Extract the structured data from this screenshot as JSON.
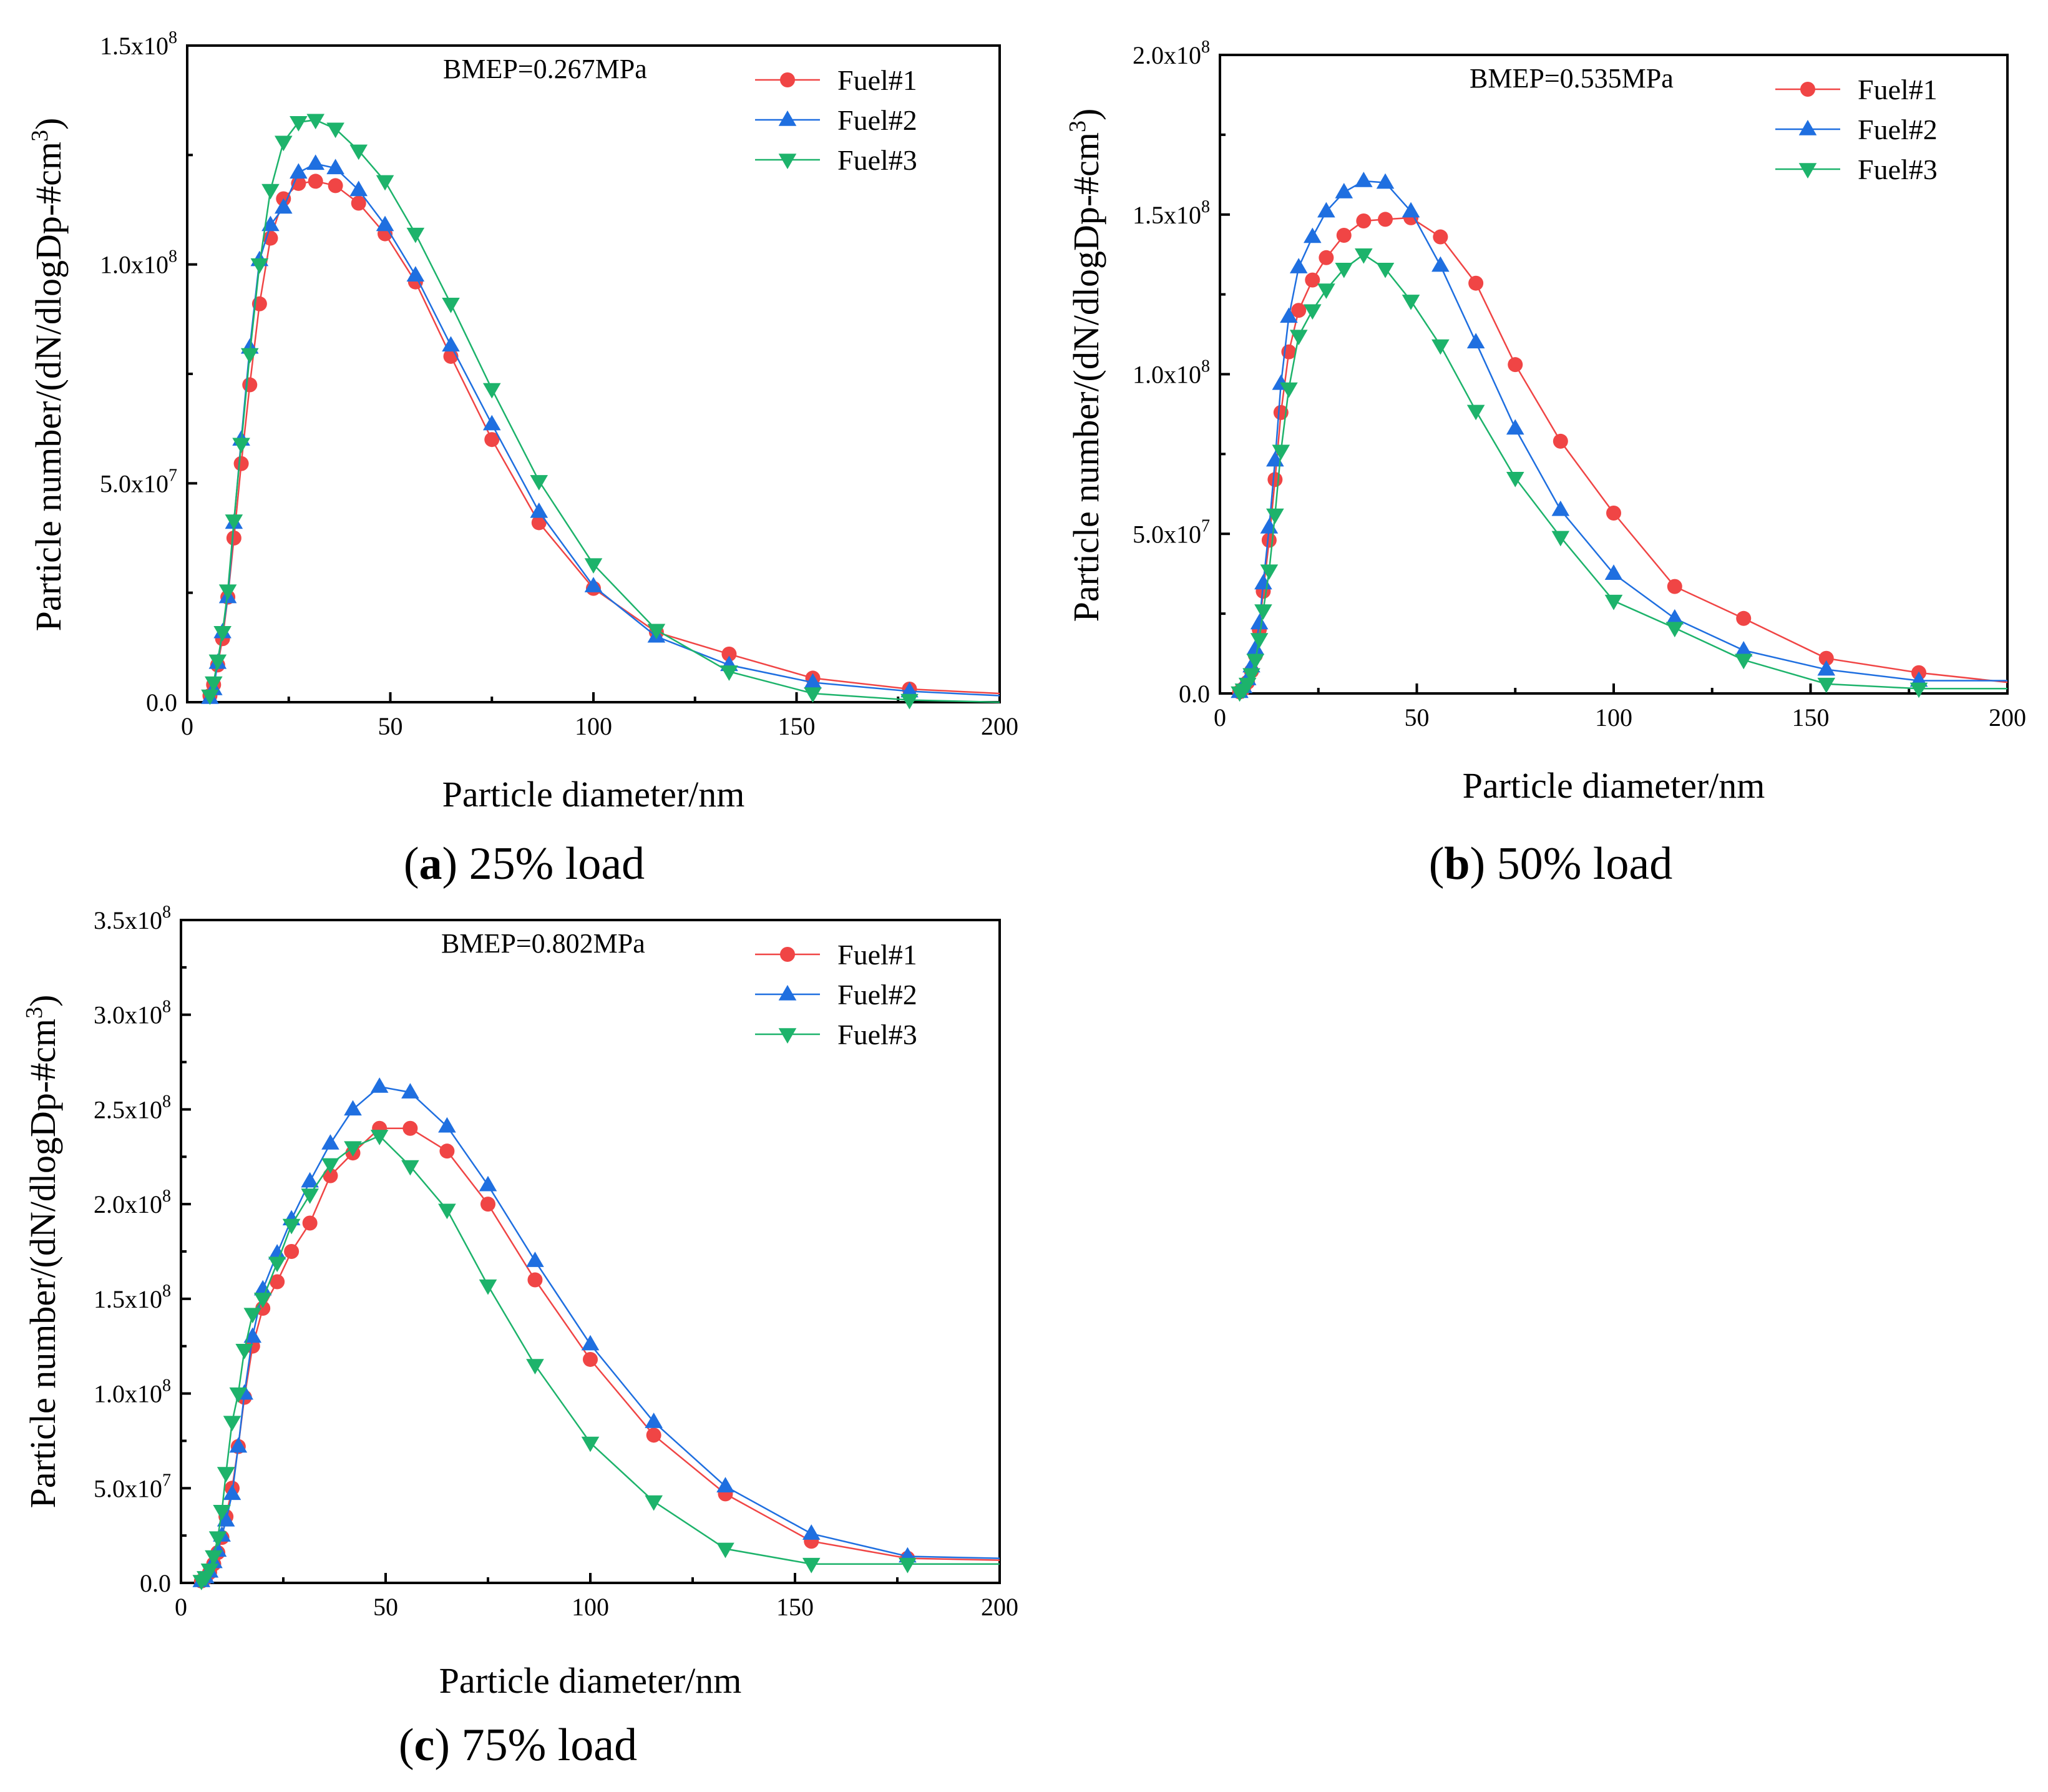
{
  "colors": {
    "Fuel#1": "#f04545",
    "Fuel#2": "#1f6fe0",
    "Fuel#3": "#1db36b"
  },
  "chart_data": [
    {
      "type": "line",
      "panel_id": "a",
      "caption_letter": "a",
      "caption_text": "25% load",
      "annotation": "BMEP=0.267MPa",
      "xlabel": "Particle diameter/nm",
      "ylabel": "Particle number/(dN/dlogDp-#cm3)",
      "xlim": [
        0,
        200
      ],
      "ylim": [
        0,
        150000000
      ],
      "x_ticks": [
        "0",
        "50",
        "100",
        "150",
        "200"
      ],
      "y_ticks": [
        {
          "mant": "0.0",
          "exp": ""
        },
        {
          "mant": "5.0x10",
          "exp": "7"
        },
        {
          "mant": "1.0x10",
          "exp": "8"
        },
        {
          "mant": "1.5x10",
          "exp": "8"
        }
      ],
      "y_tick_values": [
        0,
        50000000,
        100000000,
        150000000
      ],
      "legend_position": "top-right",
      "x": [
        5.6,
        6.5,
        7.5,
        8.7,
        10,
        11.5,
        13.3,
        15.4,
        17.8,
        20.5,
        23.7,
        27.4,
        31.6,
        36.5,
        42.2,
        48.7,
        56.2,
        64.9,
        75,
        86.6,
        100,
        115.5,
        133.4,
        154,
        177.8,
        200
      ],
      "series": [
        {
          "name": "Fuel#1",
          "values": [
            1500000,
            4000000,
            8500000,
            14500000,
            24000000,
            37500000,
            54500000,
            72500000,
            91000000,
            106000000,
            115000000,
            118500000,
            119000000,
            118000000,
            114000000,
            107000000,
            96000000,
            79000000,
            60000000,
            41000000,
            26000000,
            16000000,
            11000000,
            5500000,
            3000000,
            2000000
          ]
        },
        {
          "name": "Fuel#2",
          "values": [
            1000000,
            3000000,
            9000000,
            16000000,
            24000000,
            41000000,
            60000000,
            81000000,
            101000000,
            109000000,
            113000000,
            121000000,
            123000000,
            122000000,
            117000000,
            109000000,
            97500000,
            81500000,
            63500000,
            43500000,
            26500000,
            15000000,
            8500000,
            4500000,
            2500000,
            1500000
          ]
        },
        {
          "name": "Fuel#3",
          "values": [
            1500000,
            4500000,
            9500000,
            16000000,
            25500000,
            41500000,
            59000000,
            79500000,
            100000000,
            117000000,
            128000000,
            132500000,
            133000000,
            131000000,
            126000000,
            119000000,
            107000000,
            91000000,
            71500000,
            50500000,
            31500000,
            16500000,
            7000000,
            2000000,
            500000,
            0
          ]
        }
      ]
    },
    {
      "type": "line",
      "panel_id": "b",
      "caption_letter": "b",
      "caption_text": "50% load",
      "annotation": "BMEP=0.535MPa",
      "xlabel": "Particle diameter/nm",
      "ylabel": "Particle number/(dN/dlogDp-#cm3)",
      "xlim": [
        0,
        200
      ],
      "ylim": [
        0,
        200000000
      ],
      "x_ticks": [
        "0",
        "50",
        "100",
        "150",
        "200"
      ],
      "y_ticks": [
        {
          "mant": "0.0",
          "exp": ""
        },
        {
          "mant": "5.0x10",
          "exp": "7"
        },
        {
          "mant": "1.0x10",
          "exp": "8"
        },
        {
          "mant": "1.5x10",
          "exp": "8"
        },
        {
          "mant": "2.0x10",
          "exp": "8"
        }
      ],
      "y_tick_values": [
        0,
        50000000,
        100000000,
        150000000,
        200000000
      ],
      "legend_position": "top-right",
      "x": [
        4.5,
        5.2,
        6,
        6.9,
        8,
        9.2,
        10.6,
        12.2,
        14.1,
        16.3,
        18.8,
        21.7,
        25,
        28.9,
        33.4,
        38.5,
        44.5,
        51.4,
        59.4,
        68.5,
        79.1,
        91.4,
        105.5,
        121.8,
        140.6,
        162.4,
        187.5,
        200
      ],
      "x_plot": [
        5,
        6,
        7,
        8,
        9,
        10,
        11,
        12.5,
        14,
        15.5,
        17.5,
        20,
        23.5,
        27,
        31.5,
        36.5,
        42,
        48.5,
        56,
        65,
        75,
        86.5,
        100,
        115.5,
        133,
        154,
        177.5,
        200
      ],
      "series": [
        {
          "name": "Fuel#1",
          "values": [
            500000,
            1500000,
            3500000,
            7000000,
            12000000,
            20000000,
            32000000,
            48000000,
            67000000,
            88000000,
            107000000,
            120000000,
            129500000,
            136500000,
            143500000,
            148000000,
            148500000,
            149000000,
            143000000,
            128500000,
            103000000,
            79000000,
            56500000,
            33500000,
            23500000,
            11000000,
            6500000,
            3500000
          ]
        },
        {
          "name": "Fuel#2",
          "values": [
            500000,
            2000000,
            4500000,
            8500000,
            14000000,
            22000000,
            34500000,
            52000000,
            73000000,
            97000000,
            118000000,
            133500000,
            143000000,
            151000000,
            157000000,
            160500000,
            160000000,
            151000000,
            134000000,
            110000000,
            83000000,
            57500000,
            37500000,
            23500000,
            13500000,
            7500000,
            4000000,
            4000000
          ]
        },
        {
          "name": "Fuel#3",
          "values": [
            300000,
            1200000,
            3000000,
            6000000,
            10500000,
            17000000,
            26000000,
            38500000,
            56000000,
            76000000,
            95500000,
            112000000,
            120000000,
            126500000,
            133000000,
            137500000,
            133000000,
            123000000,
            109000000,
            88500000,
            67500000,
            49000000,
            29000000,
            20500000,
            10500000,
            3000000,
            1500000,
            1500000
          ]
        }
      ]
    },
    {
      "type": "line",
      "panel_id": "c",
      "caption_letter": "c",
      "caption_text": "75% load",
      "annotation": "BMEP=0.802MPa",
      "xlabel": "Particle diameter/nm",
      "ylabel": "Particle number/(dN/dlogDp-#cm3)",
      "xlim": [
        0,
        200
      ],
      "ylim": [
        0,
        350000000
      ],
      "x_ticks": [
        "0",
        "50",
        "100",
        "150",
        "200"
      ],
      "y_ticks": [
        {
          "mant": "0.0",
          "exp": ""
        },
        {
          "mant": "5.0x10",
          "exp": "7"
        },
        {
          "mant": "1.0x10",
          "exp": "8"
        },
        {
          "mant": "1.5x10",
          "exp": "8"
        },
        {
          "mant": "2.0x10",
          "exp": "8"
        },
        {
          "mant": "2.5x10",
          "exp": "8"
        },
        {
          "mant": "3.0x10",
          "exp": "8"
        },
        {
          "mant": "3.5x10",
          "exp": "8"
        }
      ],
      "y_tick_values": [
        0,
        50000000,
        100000000,
        150000000,
        200000000,
        250000000,
        300000000,
        350000000
      ],
      "legend_position": "top-right",
      "x": [
        5,
        6,
        7,
        8,
        9,
        10,
        11,
        12.5,
        14,
        15.5,
        17.5,
        20,
        23.5,
        27,
        31.5,
        36.5,
        42,
        48.5,
        56,
        65,
        75,
        86.5,
        100,
        115.5,
        133,
        154,
        177.5,
        200
      ],
      "series": [
        {
          "name": "Fuel#1",
          "values": [
            1000000,
            2500000,
            5500000,
            10000000,
            16000000,
            24000000,
            35000000,
            50000000,
            72000000,
            98000000,
            125000000,
            145000000,
            159000000,
            175000000,
            190000000,
            215000000,
            227000000,
            240000000,
            240000000,
            228000000,
            200000000,
            160000000,
            118000000,
            78000000,
            47000000,
            22000000,
            13000000,
            12000000
          ]
        },
        {
          "name": "Fuel#2",
          "values": [
            1000000,
            3000000,
            6000000,
            11000000,
            17000000,
            25000000,
            33000000,
            47000000,
            72000000,
            100000000,
            130000000,
            155000000,
            174000000,
            192000000,
            212000000,
            232000000,
            250000000,
            262000000,
            259000000,
            241000000,
            210000000,
            170000000,
            126000000,
            85000000,
            51000000,
            26000000,
            14000000,
            13000000
          ]
        },
        {
          "name": "Fuel#3",
          "values": [
            1000000,
            3000000,
            7000000,
            14000000,
            24000000,
            38000000,
            58000000,
            85000000,
            100000000,
            123000000,
            142000000,
            150000000,
            169000000,
            189000000,
            205000000,
            221000000,
            230000000,
            236000000,
            220000000,
            197000000,
            157000000,
            115000000,
            74000000,
            43000000,
            18000000,
            10000000,
            10000000,
            10000000
          ]
        }
      ]
    }
  ]
}
